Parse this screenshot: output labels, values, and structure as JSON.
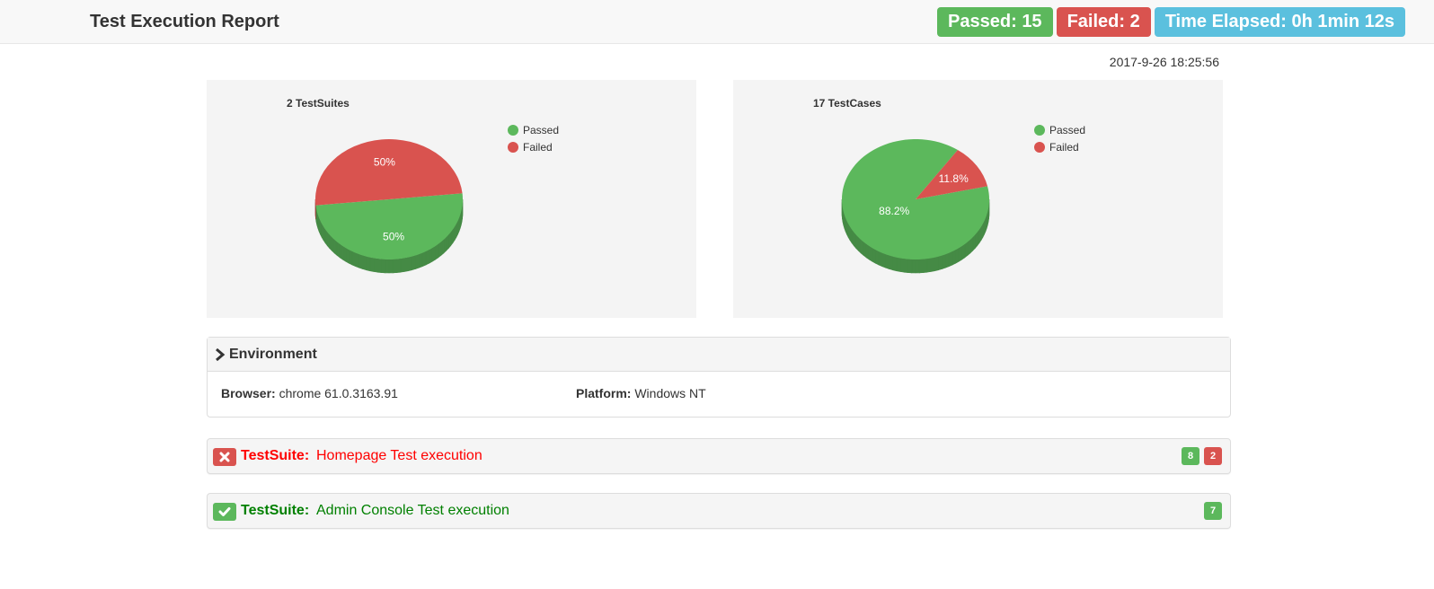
{
  "header": {
    "title": "Test Execution Report",
    "passed": "Passed: 15",
    "failed": "Failed: 2",
    "elapsed": "Time Elapsed: 0h 1min 12s"
  },
  "timestamp": "2017-9-26 18:25:56",
  "colors": {
    "passed": "#5cb85c",
    "failed": "#d9534f",
    "elapsed": "#5bc0de"
  },
  "chart_data": [
    {
      "type": "pie",
      "title": "2 TestSuites",
      "categories": [
        "Passed",
        "Failed"
      ],
      "values": [
        50,
        50
      ],
      "value_labels": [
        "50%",
        "50%"
      ],
      "colors": [
        "#5cb85c",
        "#d9534f"
      ],
      "legend": "top-right",
      "style": "3d"
    },
    {
      "type": "pie",
      "title": "17 TestCases",
      "categories": [
        "Passed",
        "Failed"
      ],
      "values": [
        88.2,
        11.8
      ],
      "value_labels": [
        "88.2%",
        "11.8%"
      ],
      "colors": [
        "#5cb85c",
        "#d9534f"
      ],
      "legend": "top-right",
      "style": "3d"
    }
  ],
  "environment": {
    "title": "Environment",
    "browser_label": "Browser:",
    "browser_value": "chrome 61.0.3163.91",
    "platform_label": "Platform:",
    "platform_value": "Windows NT"
  },
  "suites": [
    {
      "label": "TestSuite:",
      "name": "Homepage Test execution",
      "status": "failed",
      "passed_count": "8",
      "failed_count": "2"
    },
    {
      "label": "TestSuite:",
      "name": "Admin Console Test execution",
      "status": "passed",
      "passed_count": "7"
    }
  ]
}
